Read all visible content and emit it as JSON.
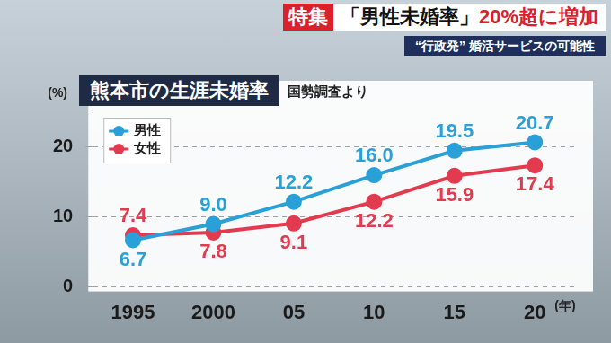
{
  "header": {
    "tag": "特集",
    "headline": [
      "「男性未婚率」",
      "20%超に増加"
    ],
    "subtitle": "“行政発” 婚活サービスの可能性"
  },
  "chart_data": {
    "type": "line",
    "title": "熊本市の生涯未婚率",
    "source": "国勢調査より",
    "y_label": "(%)",
    "x_label": "(年)",
    "categories": [
      "1995",
      "2000",
      "05",
      "10",
      "15",
      "20"
    ],
    "series": [
      {
        "name": "男性",
        "color": "#2aa0d8",
        "values": [
          6.7,
          9.0,
          12.2,
          16.0,
          19.5,
          20.7
        ],
        "value_labels": [
          "6.7",
          "9.0",
          "12.2",
          "16.0",
          "19.5",
          "20.7"
        ]
      },
      {
        "name": "女性",
        "color": "#e23b4f",
        "values": [
          7.4,
          7.8,
          9.1,
          12.2,
          15.9,
          17.4
        ]
      }
    ],
    "ylim": [
      0,
      25
    ],
    "yticks": [
      0,
      10,
      20
    ],
    "grid": true,
    "legend": "upper left",
    "data_labels": true,
    "marker": "circle"
  }
}
